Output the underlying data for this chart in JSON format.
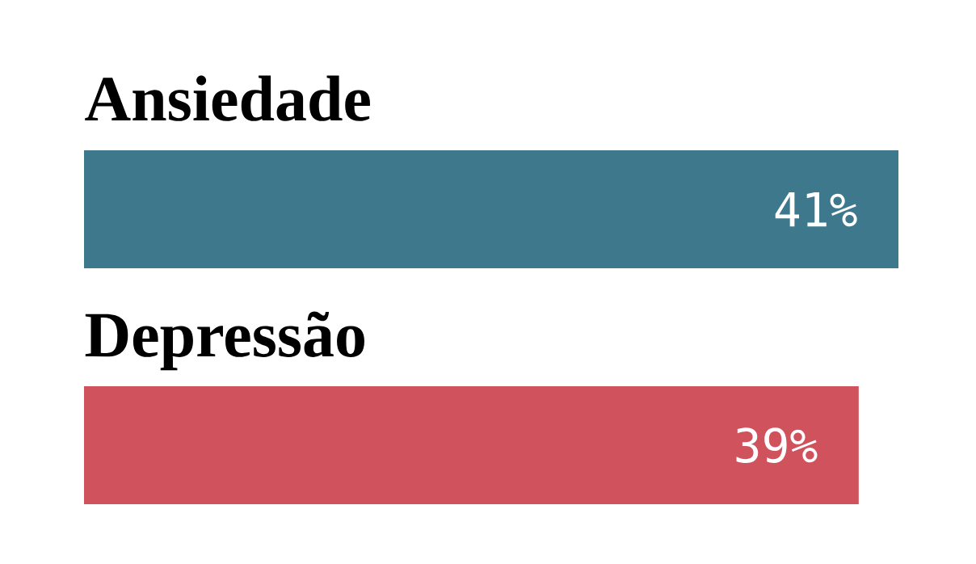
{
  "chart_data": {
    "type": "bar",
    "orientation": "horizontal",
    "tick_labels": false,
    "categories": [
      "Ansiedade",
      "Depressão"
    ],
    "values": [
      41,
      39
    ],
    "colors": [
      "#3e788d",
      "#d0525c"
    ],
    "value_labels": [
      "41%",
      "39%"
    ]
  }
}
